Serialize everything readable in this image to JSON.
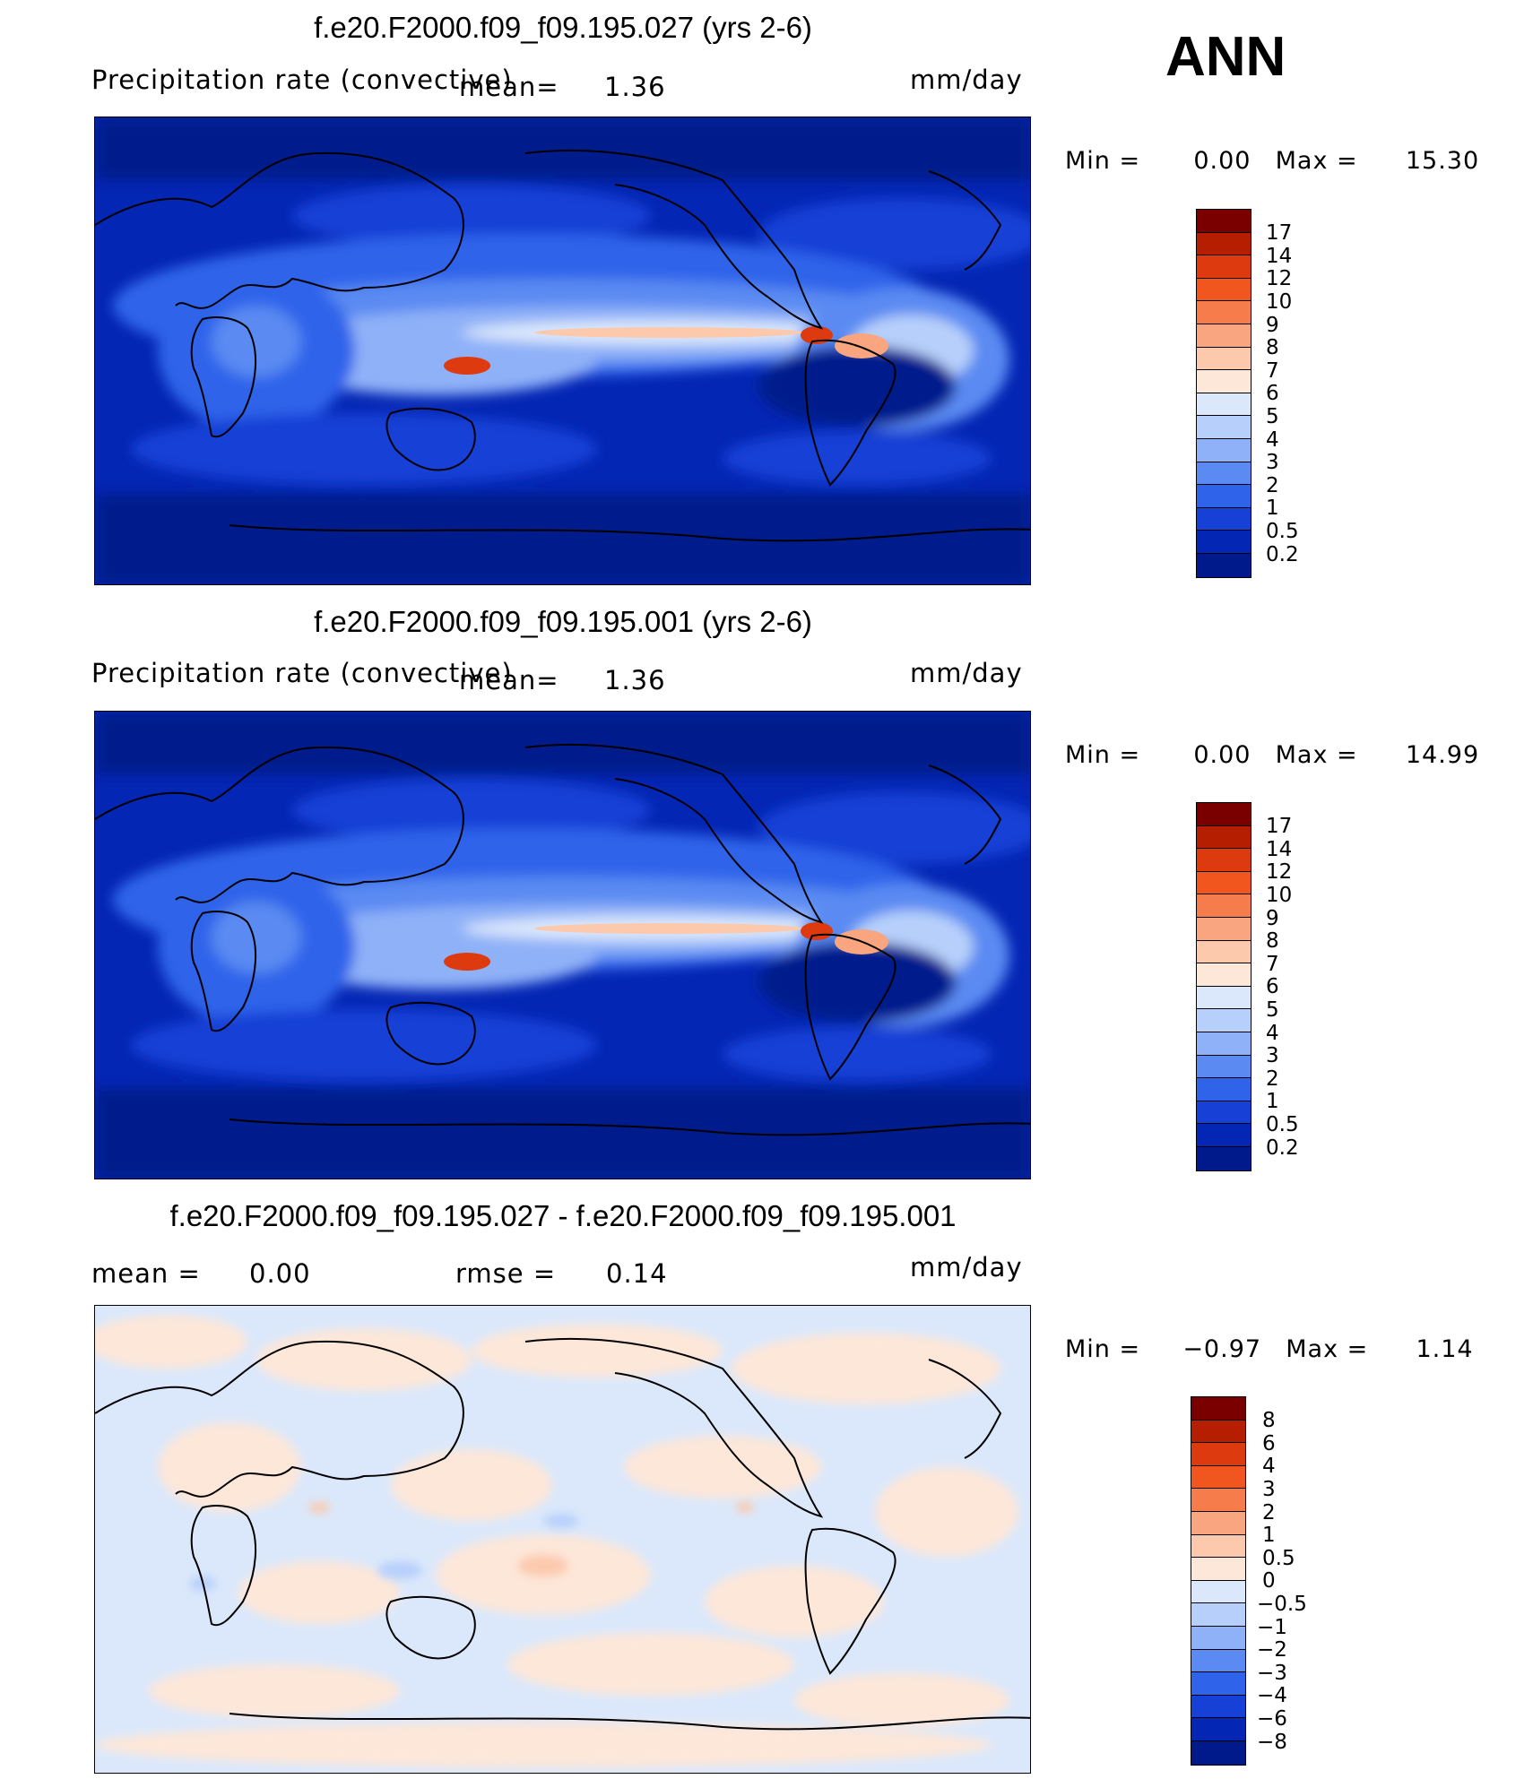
{
  "season": "ANN",
  "panels": [
    {
      "title": "f.e20.F2000.f09_f09.195.027 (yrs 2-6)",
      "variable": "Precipitation rate (convective)",
      "mean_label": "mean=",
      "mean_value": "1.36",
      "units": "mm/day",
      "min_label": "Min  =",
      "min_value": "0.00",
      "max_label": "Max  =",
      "max_value": "15.30",
      "colorbar": {
        "labels": [
          "17",
          "14",
          "12",
          "10",
          "9",
          "8",
          "7",
          "6",
          "5",
          "4",
          "3",
          "2",
          "1",
          "0.5",
          "0.2"
        ],
        "colors": [
          "#7a0000",
          "#b51e00",
          "#dd3a10",
          "#f2561f",
          "#f77c4c",
          "#f9a57f",
          "#fcc9ad",
          "#fde7d9",
          "#dbe8fb",
          "#b7d0fb",
          "#8fb1f8",
          "#5a8af2",
          "#2e63ea",
          "#1740d6",
          "#0426b4",
          "#001a8c"
        ]
      }
    },
    {
      "title": "f.e20.F2000.f09_f09.195.001 (yrs 2-6)",
      "variable": "Precipitation rate (convective)",
      "mean_label": "mean=",
      "mean_value": "1.36",
      "units": "mm/day",
      "min_label": "Min  =",
      "min_value": "0.00",
      "max_label": "Max  =",
      "max_value": "14.99",
      "colorbar": {
        "labels": [
          "17",
          "14",
          "12",
          "10",
          "9",
          "8",
          "7",
          "6",
          "5",
          "4",
          "3",
          "2",
          "1",
          "0.5",
          "0.2"
        ],
        "colors": [
          "#7a0000",
          "#b51e00",
          "#dd3a10",
          "#f2561f",
          "#f77c4c",
          "#f9a57f",
          "#fcc9ad",
          "#fde7d9",
          "#dbe8fb",
          "#b7d0fb",
          "#8fb1f8",
          "#5a8af2",
          "#2e63ea",
          "#1740d6",
          "#0426b4",
          "#001a8c"
        ]
      }
    },
    {
      "title": "f.e20.F2000.f09_f09.195.027 - f.e20.F2000.f09_f09.195.001",
      "mean_label": "mean  =",
      "mean_value": "0.00",
      "rmse_label": "rmse  =",
      "rmse_value": "0.14",
      "units": "mm/day",
      "min_label": "Min  =",
      "min_value": "−0.97",
      "max_label": "Max  =",
      "max_value": "1.14",
      "colorbar": {
        "labels": [
          "8",
          "6",
          "4",
          "3",
          "2",
          "1",
          "0.5",
          "0",
          "−0.5",
          "−1",
          "−2",
          "−3",
          "−4",
          "−6",
          "−8"
        ],
        "colors": [
          "#7a0000",
          "#b51e00",
          "#dd3a10",
          "#f2561f",
          "#f77c4c",
          "#f9a57f",
          "#fcc9ad",
          "#fde7d9",
          "#dbe8fb",
          "#b7d0fb",
          "#8fb1f8",
          "#5a8af2",
          "#2e63ea",
          "#1740d6",
          "#0426b4",
          "#001a8c"
        ]
      }
    }
  ]
}
